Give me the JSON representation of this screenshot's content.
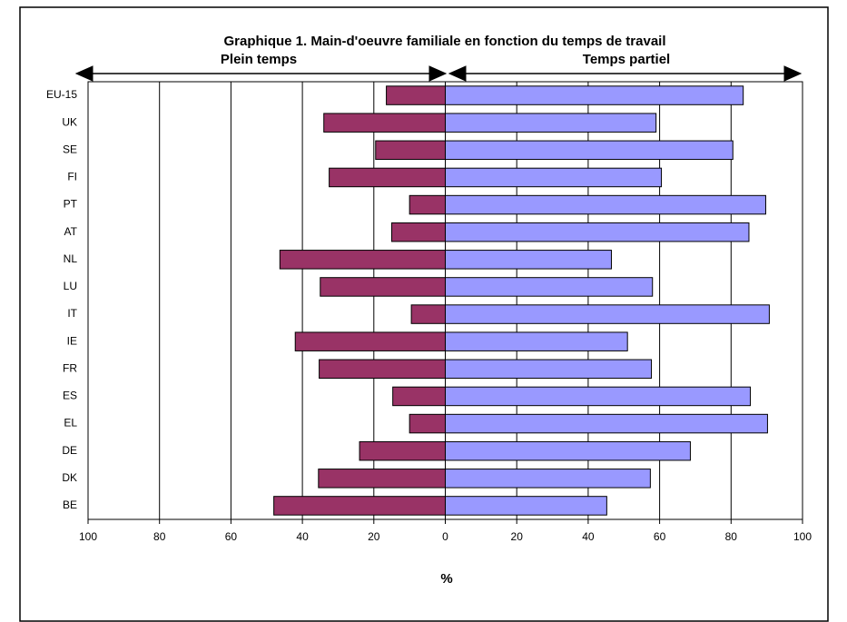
{
  "chart_data": {
    "type": "bar",
    "title": "Graphique 1. Main-d'oeuvre familiale en fonction du temps de travail",
    "xlabel": "%",
    "categories": [
      "EU-15",
      "UK",
      "SE",
      "FI",
      "PT",
      "AT",
      "NL",
      "LU",
      "IT",
      "IE",
      "FR",
      "ES",
      "EL",
      "DE",
      "DK",
      "BE"
    ],
    "series": [
      {
        "name": "Plein temps",
        "color": "#993366",
        "values": [
          -16.5,
          -34,
          -19.5,
          -32.5,
          -10,
          -15,
          -46.3,
          -35,
          -9.5,
          -42,
          -35.3,
          -14.7,
          -10,
          -24,
          -35.5,
          -48
        ]
      },
      {
        "name": "Temps partiel",
        "color": "#9999ff",
        "values": [
          83.4,
          59,
          80.5,
          60.5,
          89.7,
          85,
          46.5,
          58,
          90.7,
          51,
          57.7,
          85.4,
          90.2,
          68.6,
          57.4,
          45.2
        ]
      }
    ],
    "xlim": [
      -100,
      100
    ],
    "xticks": [
      {
        "value": -100,
        "label": "100"
      },
      {
        "value": -80,
        "label": "80"
      },
      {
        "value": -60,
        "label": "60"
      },
      {
        "value": -40,
        "label": "40"
      },
      {
        "value": -20,
        "label": "20"
      },
      0,
      20,
      40,
      60,
      80,
      100
    ],
    "grid": true
  }
}
